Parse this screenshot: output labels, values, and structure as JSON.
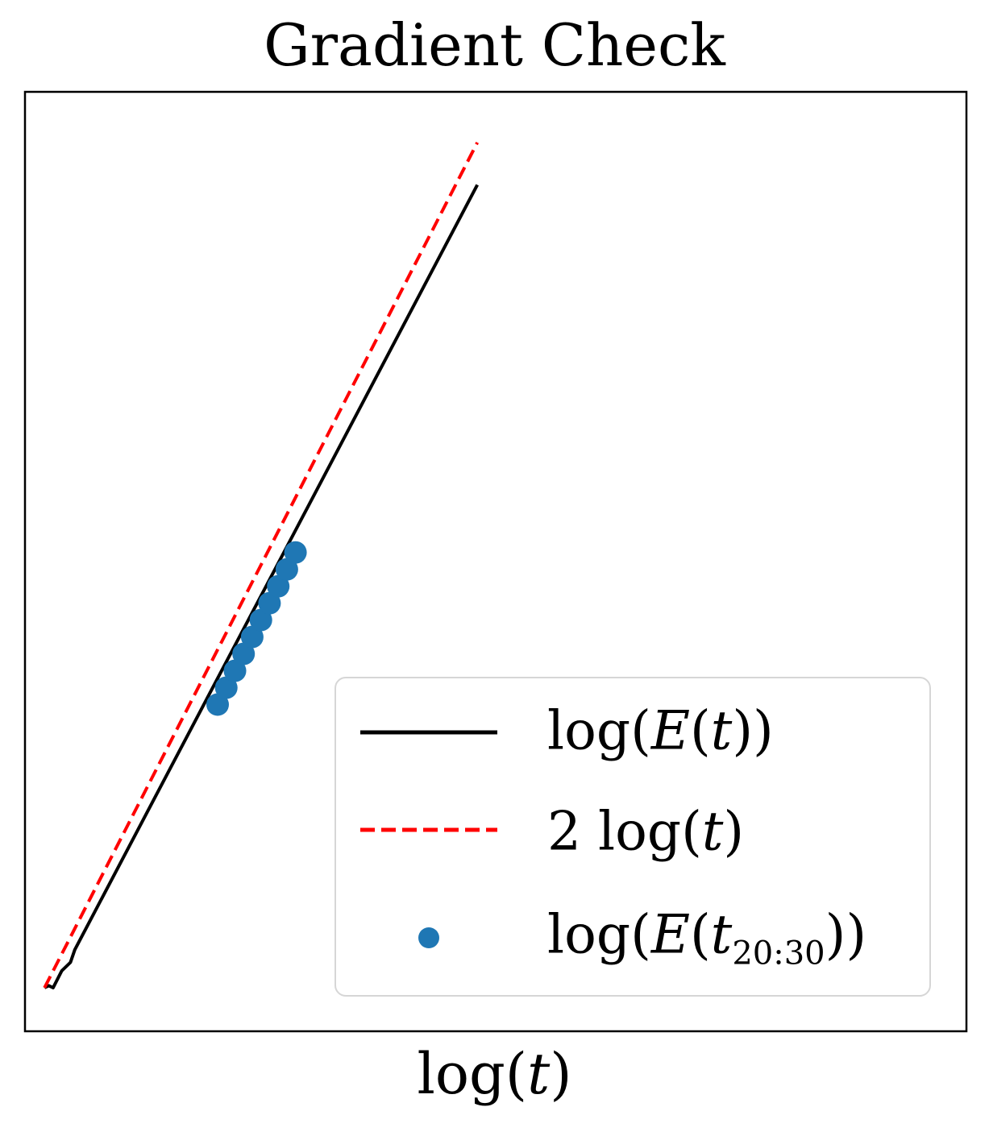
{
  "chart_data": {
    "type": "line",
    "title": "Gradient Check",
    "xlabel": "log(t)",
    "ylabel": "",
    "grid": false,
    "ticks": "none",
    "legend_position": "lower-right",
    "series": [
      {
        "name": "log(E(t))",
        "kind": "line",
        "style": "solid",
        "color": "#000000",
        "x": [
          0.0,
          0.01,
          0.02,
          0.04,
          0.06,
          0.07,
          1.0
        ],
        "y": [
          0.0,
          0.005,
          0.0,
          0.04,
          0.06,
          0.09,
          1.9
        ]
      },
      {
        "name": "2 log(t)",
        "kind": "line",
        "style": "dashed",
        "color": "#ff0000",
        "x": [
          0.0,
          1.0
        ],
        "y": [
          0.0,
          2.0
        ]
      },
      {
        "name": "log(E(t_20:30))",
        "kind": "scatter",
        "color": "#1f77b4",
        "x": [
          0.4,
          0.42,
          0.44,
          0.46,
          0.48,
          0.5,
          0.52,
          0.54,
          0.56,
          0.58
        ],
        "y": [
          0.67,
          0.71,
          0.75,
          0.79,
          0.83,
          0.87,
          0.91,
          0.95,
          0.99,
          1.03
        ]
      }
    ],
    "xlim": [
      -0.045,
      2.13
    ],
    "ylim": [
      -0.103,
      2.12
    ]
  },
  "legend": {
    "entry1": {
      "prefix": "log(",
      "var1": "E",
      "mid": "(",
      "var2": "t",
      "suffix": "))"
    },
    "entry2": {
      "prefix": "2 log(",
      "var1": "t",
      "suffix": ")"
    },
    "entry3": {
      "prefix": "log(",
      "var1": "E",
      "mid": "(",
      "var2": "t",
      "sub": "20:30",
      "suffix": "))"
    }
  },
  "axis": {
    "xlabel_prefix": "log(",
    "xlabel_var": "t",
    "xlabel_suffix": ")"
  }
}
